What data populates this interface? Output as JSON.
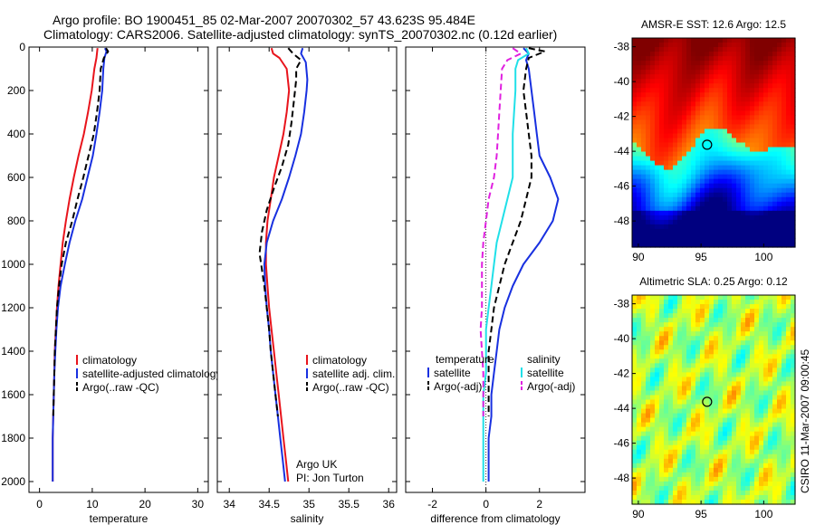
{
  "header": {
    "line1": "Argo profile: BO 1900451_85 02-Mar-2007 20070302_57 43.623S 95.484E",
    "line2": "Climatology: CARS2006. Satellite-adjusted climatology: synTS_20070302.nc (0.12d earlier)"
  },
  "credit": "CSIRO 11-Mar-2007 09:00:45",
  "colors": {
    "climatology": "#e8141c",
    "satellite": "#1830e0",
    "argo": "#000000",
    "sat_salinity": "#20e0e8",
    "argo_salinity": "#e020e0"
  },
  "depth_ticks": [
    0,
    200,
    400,
    600,
    800,
    1000,
    1200,
    1400,
    1600,
    1800,
    2000
  ],
  "chart_data": [
    {
      "type": "line",
      "id": "temperature",
      "xlabel": "temperature",
      "ylabel": "",
      "xlim": [
        -2,
        32
      ],
      "ylim": [
        2050,
        0
      ],
      "xticks": [
        0,
        10,
        20,
        30
      ],
      "legend": [
        "climatology",
        "satellite-adjusted climatology",
        "Argo(..raw -QC)"
      ],
      "series": [
        {
          "name": "climatology",
          "style": "solid",
          "color": "#e8141c",
          "points": [
            [
              11.0,
              5
            ],
            [
              10.8,
              50
            ],
            [
              10.4,
              100
            ],
            [
              9.9,
              200
            ],
            [
              9.2,
              300
            ],
            [
              8.4,
              400
            ],
            [
              7.4,
              500
            ],
            [
              6.5,
              600
            ],
            [
              5.7,
              700
            ],
            [
              5.0,
              800
            ],
            [
              4.4,
              900
            ],
            [
              4.0,
              1000
            ],
            [
              3.6,
              1100
            ],
            [
              3.3,
              1200
            ],
            [
              3.1,
              1300
            ],
            [
              2.9,
              1400
            ],
            [
              2.8,
              1500
            ],
            [
              2.7,
              1600
            ],
            [
              2.6,
              1700
            ],
            [
              2.5,
              1800
            ],
            [
              2.5,
              1900
            ],
            [
              2.5,
              2000
            ]
          ]
        },
        {
          "name": "satellite-adjusted climatology",
          "style": "solid",
          "color": "#1830e0",
          "points": [
            [
              12.4,
              5
            ],
            [
              12.7,
              20
            ],
            [
              12.3,
              50
            ],
            [
              12.1,
              100
            ],
            [
              11.9,
              200
            ],
            [
              11.4,
              300
            ],
            [
              10.8,
              400
            ],
            [
              10.1,
              500
            ],
            [
              9.1,
              600
            ],
            [
              8.1,
              700
            ],
            [
              6.8,
              800
            ],
            [
              5.7,
              900
            ],
            [
              4.8,
              1000
            ],
            [
              4.0,
              1100
            ],
            [
              3.5,
              1200
            ],
            [
              3.2,
              1300
            ],
            [
              3.0,
              1400
            ],
            [
              2.8,
              1500
            ],
            [
              2.7,
              1600
            ],
            [
              2.6,
              1700
            ],
            [
              2.5,
              1800
            ],
            [
              2.5,
              1900
            ],
            [
              2.5,
              2000
            ]
          ]
        },
        {
          "name": "Argo(..raw -QC)",
          "style": "dashed",
          "color": "#000000",
          "points": [
            [
              12.6,
              5
            ],
            [
              13.0,
              20
            ],
            [
              12.2,
              50
            ],
            [
              11.6,
              100
            ],
            [
              11.4,
              200
            ],
            [
              10.9,
              300
            ],
            [
              10.3,
              400
            ],
            [
              9.3,
              500
            ],
            [
              8.3,
              600
            ],
            [
              7.2,
              700
            ],
            [
              6.2,
              800
            ],
            [
              5.0,
              900
            ],
            [
              4.2,
              1000
            ],
            [
              3.7,
              1100
            ],
            [
              3.3,
              1200
            ],
            [
              3.1,
              1300
            ],
            [
              2.9,
              1400
            ],
            [
              2.8,
              1500
            ],
            [
              2.7,
              1600
            ],
            [
              2.6,
              1700
            ]
          ]
        }
      ]
    },
    {
      "type": "line",
      "id": "salinity",
      "xlabel": "salinity",
      "ylabel": "",
      "xlim": [
        33.85,
        36.1
      ],
      "ylim": [
        2050,
        0
      ],
      "xticks": [
        34,
        34.5,
        35,
        35.5,
        36
      ],
      "legend": [
        "climatology",
        "satellite adj. clim.",
        "Argo(..raw -QC)"
      ],
      "annotation": [
        "Argo UK",
        "PI: Jon Turton"
      ],
      "series": [
        {
          "name": "climatology",
          "style": "solid",
          "color": "#e8141c",
          "points": [
            [
              34.53,
              5
            ],
            [
              34.55,
              30
            ],
            [
              34.63,
              50
            ],
            [
              34.72,
              100
            ],
            [
              34.75,
              200
            ],
            [
              34.72,
              300
            ],
            [
              34.68,
              400
            ],
            [
              34.62,
              500
            ],
            [
              34.56,
              600
            ],
            [
              34.52,
              700
            ],
            [
              34.48,
              800
            ],
            [
              34.46,
              900
            ],
            [
              34.46,
              1000
            ],
            [
              34.48,
              1100
            ],
            [
              34.5,
              1200
            ],
            [
              34.53,
              1300
            ],
            [
              34.56,
              1400
            ],
            [
              34.59,
              1500
            ],
            [
              34.62,
              1600
            ],
            [
              34.65,
              1700
            ],
            [
              34.68,
              1800
            ],
            [
              34.71,
              1900
            ],
            [
              34.74,
              2000
            ]
          ]
        },
        {
          "name": "satellite adj. clim.",
          "style": "solid",
          "color": "#1830e0",
          "points": [
            [
              34.92,
              5
            ],
            [
              34.9,
              30
            ],
            [
              34.96,
              70
            ],
            [
              34.98,
              150
            ],
            [
              34.97,
              200
            ],
            [
              34.94,
              300
            ],
            [
              34.9,
              400
            ],
            [
              34.83,
              500
            ],
            [
              34.75,
              600
            ],
            [
              34.66,
              700
            ],
            [
              34.55,
              800
            ],
            [
              34.47,
              900
            ],
            [
              34.44,
              1000
            ],
            [
              34.45,
              1100
            ],
            [
              34.47,
              1200
            ],
            [
              34.5,
              1300
            ],
            [
              34.52,
              1400
            ],
            [
              34.55,
              1500
            ],
            [
              34.58,
              1600
            ],
            [
              34.61,
              1700
            ],
            [
              34.64,
              1800
            ],
            [
              34.67,
              1900
            ],
            [
              34.7,
              2000
            ]
          ]
        },
        {
          "name": "Argo(..raw -QC)",
          "style": "dashed",
          "color": "#000000",
          "points": [
            [
              34.74,
              5
            ],
            [
              34.8,
              30
            ],
            [
              34.9,
              60
            ],
            [
              34.84,
              100
            ],
            [
              34.84,
              150
            ],
            [
              34.81,
              250
            ],
            [
              34.78,
              350
            ],
            [
              34.74,
              450
            ],
            [
              34.66,
              550
            ],
            [
              34.56,
              650
            ],
            [
              34.47,
              750
            ],
            [
              34.41,
              850
            ],
            [
              34.38,
              950
            ],
            [
              34.4,
              1000
            ],
            [
              34.44,
              1100
            ],
            [
              34.47,
              1200
            ],
            [
              34.5,
              1300
            ],
            [
              34.52,
              1400
            ],
            [
              34.55,
              1500
            ],
            [
              34.58,
              1600
            ],
            [
              34.61,
              1700
            ]
          ]
        }
      ]
    },
    {
      "type": "line",
      "id": "difference",
      "xlabel": "difference from climatology",
      "ylabel": "",
      "xlim": [
        -3,
        3.7
      ],
      "ylim": [
        2050,
        0
      ],
      "xticks": [
        -2,
        0,
        2
      ],
      "legend_temperature_title": "temperature",
      "legend_salinity_title": "salinity",
      "legend_temperature": [
        "satellite",
        "Argo(-adj)"
      ],
      "legend_salinity": [
        "satellite",
        "Argo(-adj)"
      ],
      "series": [
        {
          "name": "temperature satellite",
          "style": "solid",
          "color": "#1830e0",
          "points": [
            [
              1.4,
              5
            ],
            [
              1.6,
              30
            ],
            [
              1.5,
              60
            ],
            [
              1.6,
              100
            ],
            [
              1.7,
              200
            ],
            [
              1.8,
              300
            ],
            [
              1.9,
              400
            ],
            [
              2.0,
              500
            ],
            [
              2.4,
              600
            ],
            [
              2.7,
              700
            ],
            [
              2.5,
              800
            ],
            [
              2.0,
              900
            ],
            [
              1.4,
              1000
            ],
            [
              1.0,
              1100
            ],
            [
              0.7,
              1200
            ],
            [
              0.5,
              1300
            ],
            [
              0.4,
              1400
            ],
            [
              0.3,
              1500
            ],
            [
              0.2,
              1600
            ],
            [
              0.2,
              1700
            ],
            [
              0.1,
              1800
            ],
            [
              0.1,
              1900
            ],
            [
              0.1,
              2000
            ]
          ]
        },
        {
          "name": "temperature Argo(-adj)",
          "style": "dashed",
          "color": "#000000",
          "points": [
            [
              1.6,
              5
            ],
            [
              2.2,
              20
            ],
            [
              1.6,
              50
            ],
            [
              1.5,
              100
            ],
            [
              1.4,
              200
            ],
            [
              1.5,
              300
            ],
            [
              1.6,
              400
            ],
            [
              1.7,
              500
            ],
            [
              1.7,
              600
            ],
            [
              1.5,
              700
            ],
            [
              1.3,
              800
            ],
            [
              1.0,
              900
            ],
            [
              0.7,
              1000
            ],
            [
              0.5,
              1100
            ],
            [
              0.3,
              1200
            ],
            [
              0.2,
              1300
            ],
            [
              0.1,
              1400
            ],
            [
              0.1,
              1500
            ],
            [
              0.1,
              1600
            ],
            [
              0.1,
              1700
            ]
          ]
        },
        {
          "name": "salinity satellite",
          "style": "solid",
          "color": "#20e0e8",
          "points": [
            [
              1.5,
              5
            ],
            [
              1.6,
              30
            ],
            [
              1.2,
              60
            ],
            [
              1.1,
              100
            ],
            [
              1.1,
              200
            ],
            [
              1.05,
              300
            ],
            [
              1.0,
              400
            ],
            [
              1.0,
              500
            ],
            [
              1.0,
              600
            ],
            [
              0.8,
              700
            ],
            [
              0.6,
              800
            ],
            [
              0.4,
              900
            ],
            [
              0.3,
              1000
            ],
            [
              0.2,
              1100
            ],
            [
              0.1,
              1200
            ],
            [
              0.0,
              1300
            ],
            [
              0.0,
              1400
            ],
            [
              0.0,
              1500
            ],
            [
              -0.1,
              1600
            ],
            [
              -0.1,
              1700
            ],
            [
              -0.1,
              1800
            ],
            [
              -0.1,
              1900
            ],
            [
              -0.1,
              2000
            ]
          ]
        },
        {
          "name": "salinity Argo(-adj)",
          "style": "dashed",
          "color": "#e020e0",
          "points": [
            [
              1.0,
              5
            ],
            [
              1.3,
              30
            ],
            [
              0.8,
              60
            ],
            [
              0.6,
              100
            ],
            [
              0.55,
              200
            ],
            [
              0.5,
              300
            ],
            [
              0.45,
              400
            ],
            [
              0.4,
              500
            ],
            [
              0.3,
              600
            ],
            [
              0.1,
              700
            ],
            [
              0.0,
              800
            ],
            [
              -0.1,
              900
            ],
            [
              -0.15,
              1000
            ],
            [
              -0.15,
              1100
            ],
            [
              -0.15,
              1200
            ],
            [
              -0.2,
              1300
            ],
            [
              -0.15,
              1400
            ],
            [
              -0.1,
              1500
            ],
            [
              -0.1,
              1600
            ],
            [
              -0.1,
              1700
            ]
          ]
        }
      ]
    },
    {
      "type": "heatmap",
      "id": "sst_map",
      "title": "AMSR-E SST: 12.6 Argo: 12.5",
      "xlim": [
        89.5,
        102.5
      ],
      "ylim": [
        -49.5,
        -37.5
      ],
      "xticks": [
        90,
        95,
        100
      ],
      "yticks": [
        -38,
        -40,
        -42,
        -44,
        -46,
        -48
      ],
      "marker": [
        95.484,
        -43.623
      ]
    },
    {
      "type": "heatmap",
      "id": "sla_map",
      "title": "Altimetric SLA: 0.25 Argo: 0.12",
      "xlim": [
        89.5,
        102.5
      ],
      "ylim": [
        -49.5,
        -37.5
      ],
      "xticks": [
        90,
        95,
        100
      ],
      "yticks": [
        -38,
        -40,
        -42,
        -44,
        -46,
        -48
      ],
      "marker": [
        95.484,
        -43.623
      ]
    }
  ]
}
